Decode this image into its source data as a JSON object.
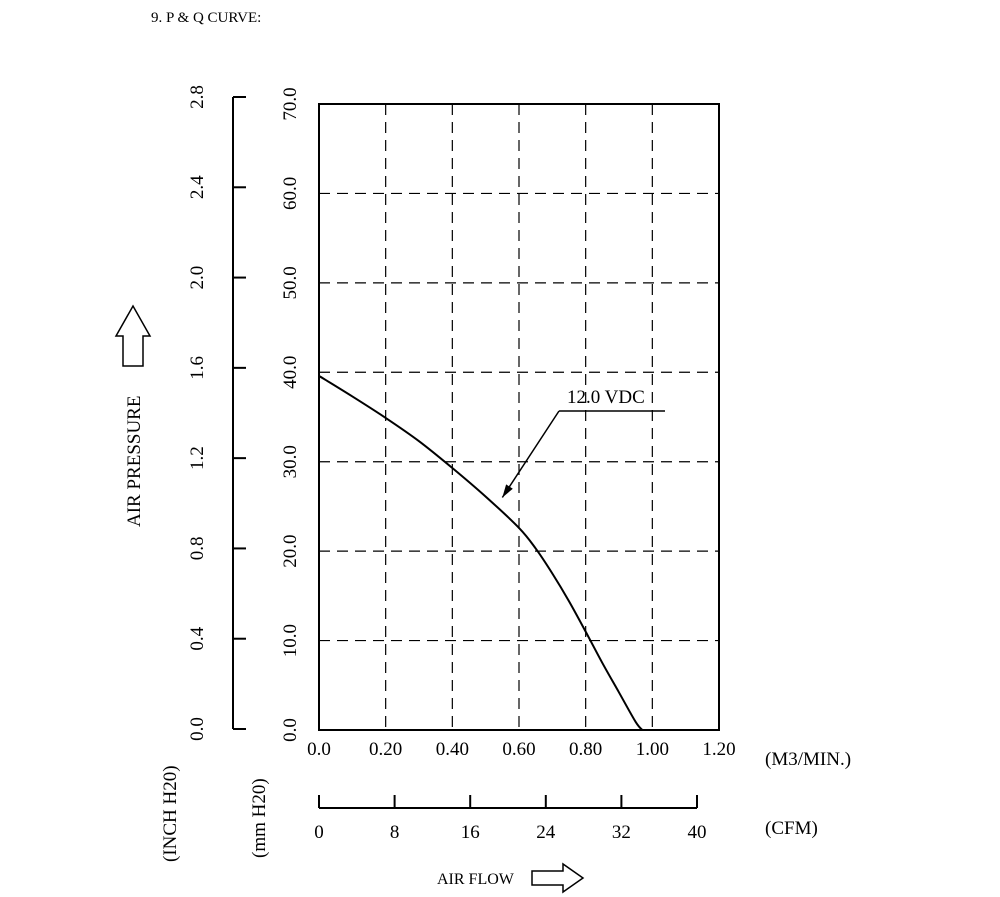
{
  "chart_data": {
    "type": "line",
    "title": "9. P & Q CURVE:",
    "xlabel": "AIR FLOW",
    "ylabel": "AIR PRESSURE",
    "x_unit": "(M3/MIN.)",
    "x2_unit": "(CFM)",
    "y_unit": "(mm H20)",
    "y2_unit": "(INCH H20)",
    "xlim": [
      0,
      1.2
    ],
    "ylim": [
      0,
      70
    ],
    "x_ticks": [
      "0.0",
      "0.20",
      "0.40",
      "0.60",
      "0.80",
      "1.00",
      "1.20"
    ],
    "x_tick_values": [
      0,
      0.2,
      0.4,
      0.6,
      0.8,
      1.0,
      1.2
    ],
    "x2_ticks": [
      "0",
      "8",
      "16",
      "24",
      "32",
      "40"
    ],
    "x2_tick_values": [
      0,
      8,
      16,
      24,
      32,
      40
    ],
    "x2lim": [
      0,
      40
    ],
    "y_ticks": [
      "0.0",
      "10.0",
      "20.0",
      "30.0",
      "40.0",
      "50.0",
      "60.0",
      "70.0"
    ],
    "y_tick_values": [
      0,
      10,
      20,
      30,
      40,
      50,
      60,
      70
    ],
    "y2_ticks": [
      "0.0",
      "0.4",
      "0.8",
      "1.2",
      "1.6",
      "2.0",
      "2.4",
      "2.8"
    ],
    "y2_tick_values": [
      0,
      0.4,
      0.8,
      1.2,
      1.6,
      2.0,
      2.4,
      2.8
    ],
    "y2lim": [
      0,
      2.8
    ],
    "grid": true,
    "series": [
      {
        "name": "12.0 VDC",
        "x": [
          0,
          0.1,
          0.2,
          0.3,
          0.4,
          0.5,
          0.6,
          0.65,
          0.7,
          0.75,
          0.8,
          0.85,
          0.9,
          0.95,
          0.97
        ],
        "y": [
          39.6,
          37.3,
          34.9,
          32.3,
          29.3,
          26.1,
          22.6,
          20.3,
          17.5,
          14.4,
          11.0,
          7.5,
          4.2,
          0.9,
          0
        ]
      }
    ],
    "annotation": {
      "text": "12.0 VDC",
      "x": 0.55,
      "y": 26.0
    }
  }
}
